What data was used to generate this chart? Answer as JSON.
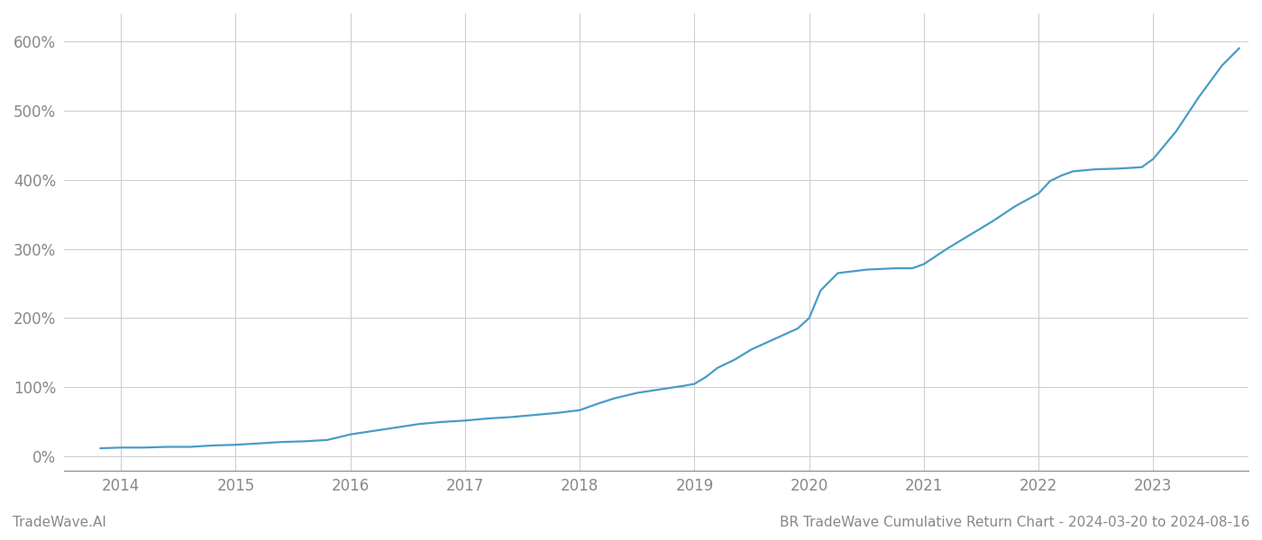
{
  "title": "BR TradeWave Cumulative Return Chart - 2024-03-20 to 2024-08-16",
  "watermark": "TradeWave.AI",
  "line_color": "#4a9cc7",
  "background_color": "#ffffff",
  "grid_color": "#cccccc",
  "x_years": [
    2014,
    2015,
    2016,
    2017,
    2018,
    2019,
    2020,
    2021,
    2022,
    2023
  ],
  "y_ticks": [
    0,
    100,
    200,
    300,
    400,
    500,
    600
  ],
  "xlim": [
    2013.5,
    2023.83
  ],
  "ylim": [
    -20,
    640
  ],
  "x_data": [
    2013.82,
    2014.0,
    2014.2,
    2014.4,
    2014.6,
    2014.8,
    2015.0,
    2015.2,
    2015.4,
    2015.6,
    2015.8,
    2016.0,
    2016.2,
    2016.4,
    2016.6,
    2016.8,
    2017.0,
    2017.2,
    2017.4,
    2017.6,
    2017.8,
    2018.0,
    2018.15,
    2018.3,
    2018.5,
    2018.7,
    2018.9,
    2019.0,
    2019.1,
    2019.2,
    2019.35,
    2019.5,
    2019.7,
    2019.9,
    2020.0,
    2020.1,
    2020.25,
    2020.5,
    2020.75,
    2020.9,
    2021.0,
    2021.2,
    2021.4,
    2021.6,
    2021.8,
    2022.0,
    2022.1,
    2022.2,
    2022.3,
    2022.5,
    2022.7,
    2022.9,
    2023.0,
    2023.2,
    2023.4,
    2023.6,
    2023.75
  ],
  "y_data": [
    12,
    13,
    13,
    14,
    14,
    16,
    17,
    19,
    21,
    22,
    24,
    32,
    37,
    42,
    47,
    50,
    52,
    55,
    57,
    60,
    63,
    67,
    76,
    84,
    92,
    97,
    102,
    105,
    115,
    128,
    140,
    155,
    170,
    185,
    200,
    240,
    265,
    270,
    272,
    272,
    278,
    300,
    320,
    340,
    362,
    380,
    398,
    406,
    412,
    415,
    416,
    418,
    430,
    470,
    520,
    565,
    590
  ],
  "title_fontsize": 11,
  "watermark_fontsize": 11,
  "tick_fontsize": 12,
  "tick_color": "#888888",
  "spine_color": "#888888",
  "line_width": 1.6
}
